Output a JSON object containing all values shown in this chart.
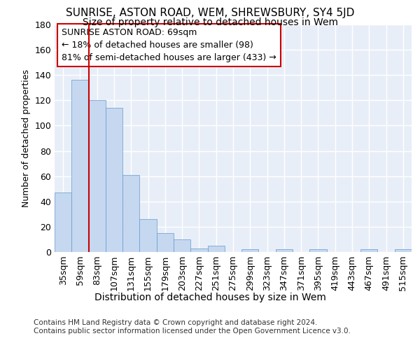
{
  "title1": "SUNRISE, ASTON ROAD, WEM, SHREWSBURY, SY4 5JD",
  "title2": "Size of property relative to detached houses in Wem",
  "xlabel": "Distribution of detached houses by size in Wem",
  "ylabel": "Number of detached properties",
  "categories": [
    "35sqm",
    "59sqm",
    "83sqm",
    "107sqm",
    "131sqm",
    "155sqm",
    "179sqm",
    "203sqm",
    "227sqm",
    "251sqm",
    "275sqm",
    "299sqm",
    "323sqm",
    "347sqm",
    "371sqm",
    "395sqm",
    "419sqm",
    "443sqm",
    "467sqm",
    "491sqm",
    "515sqm"
  ],
  "values": [
    47,
    136,
    120,
    114,
    61,
    26,
    15,
    10,
    3,
    5,
    0,
    2,
    0,
    2,
    0,
    2,
    0,
    0,
    2,
    0,
    2
  ],
  "bar_color": "#c5d8f0",
  "bar_edge_color": "#6699cc",
  "bg_color": "#e8eef8",
  "grid_color": "#ffffff",
  "vline_x": 1.5,
  "vline_color": "#cc0000",
  "annotation_line1": "SUNRISE ASTON ROAD: 69sqm",
  "annotation_line2": "← 18% of detached houses are smaller (98)",
  "annotation_line3": "81% of semi-detached houses are larger (433) →",
  "annotation_box_color": "#cc0000",
  "ylim": [
    0,
    180
  ],
  "yticks": [
    0,
    20,
    40,
    60,
    80,
    100,
    120,
    140,
    160,
    180
  ],
  "footnote": "Contains HM Land Registry data © Crown copyright and database right 2024.\nContains public sector information licensed under the Open Government Licence v3.0.",
  "title1_fontsize": 11,
  "title2_fontsize": 10,
  "xlabel_fontsize": 10,
  "ylabel_fontsize": 9,
  "tick_fontsize": 9,
  "annotation_fontsize": 9,
  "footnote_fontsize": 7.5
}
